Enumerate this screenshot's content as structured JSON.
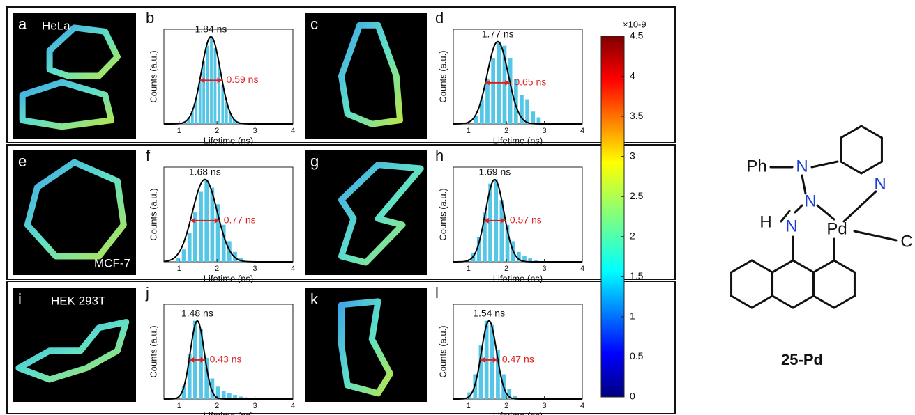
{
  "images": [
    {
      "panel": "a",
      "cell_line": "HeLa"
    },
    {
      "panel": "c"
    },
    {
      "panel": "e",
      "cell_line": "MCF-7"
    },
    {
      "panel": "g"
    },
    {
      "panel": "i",
      "cell_line": "HEK 293T"
    },
    {
      "panel": "k"
    }
  ],
  "chart_data": [
    {
      "type": "histogram",
      "panel": "b",
      "xlabel": "Lifetime (ns)",
      "ylabel": "Counts (a.u.)",
      "color": "#56c6e6",
      "bins": [
        1.1,
        1.2,
        1.3,
        1.4,
        1.5,
        1.6,
        1.7,
        1.8,
        1.9,
        2.0,
        2.1,
        2.2,
        2.3,
        2.4,
        2.5,
        2.6,
        2.7
      ],
      "counts": [
        0.03,
        0.07,
        0.16,
        0.31,
        0.52,
        0.76,
        0.95,
        1.06,
        0.92,
        0.71,
        0.47,
        0.27,
        0.13,
        0.06,
        0.03,
        0.01
      ],
      "xlim": [
        0.6,
        4
      ],
      "xticks": [
        1,
        2,
        3,
        4
      ],
      "ylim": [
        0,
        1.15
      ],
      "peak": {
        "value": 1.84,
        "label": "1.84 ns"
      },
      "fwhm": {
        "value": 0.59,
        "label": "0.59 ns"
      }
    },
    {
      "type": "histogram",
      "panel": "d",
      "xlabel": "Lifetime (ns)",
      "ylabel": "Counts (a.u.)",
      "color": "#56c6e6",
      "bins": [
        1.125,
        1.275,
        1.425,
        1.575,
        1.725,
        1.875,
        2.025,
        2.175,
        2.325,
        2.475,
        2.625,
        2.775,
        2.925
      ],
      "counts": [
        0.1,
        0.3,
        0.55,
        0.8,
        1.0,
        0.95,
        0.8,
        0.55,
        0.35,
        0.3,
        0.15,
        0.08
      ],
      "xlim": [
        0.6,
        4
      ],
      "xticks": [
        1,
        2,
        3,
        4
      ],
      "ylim": [
        0,
        1.15
      ],
      "peak": {
        "value": 1.77,
        "label": "1.77 ns"
      },
      "fwhm": {
        "value": 0.65,
        "label": "0.65 ns"
      }
    },
    {
      "type": "histogram",
      "panel": "f",
      "xlabel": "Lifetime (ns)",
      "ylabel": "Counts (a.u.)",
      "color": "#56c6e6",
      "bins": [
        0.9,
        1.05,
        1.2,
        1.35,
        1.5,
        1.65,
        1.8,
        1.95,
        2.1,
        2.25,
        2.4,
        2.55,
        2.7
      ],
      "counts": [
        0.05,
        0.15,
        0.35,
        0.6,
        0.85,
        1.0,
        0.9,
        0.7,
        0.45,
        0.25,
        0.12,
        0.05
      ],
      "xlim": [
        0.6,
        4
      ],
      "xticks": [
        1,
        2,
        3,
        4
      ],
      "ylim": [
        0,
        1.15
      ],
      "peak": {
        "value": 1.68,
        "label": "1.68 ns"
      },
      "fwhm": {
        "value": 0.77,
        "label": "0.77 ns"
      }
    },
    {
      "type": "histogram",
      "panel": "h",
      "xlabel": "Lifetime (ns)",
      "ylabel": "Counts (a.u.)",
      "color": "#56c6e6",
      "bins": [
        1.05,
        1.2,
        1.35,
        1.5,
        1.65,
        1.8,
        1.95,
        2.1,
        2.25,
        2.4,
        2.55,
        2.7,
        2.85
      ],
      "counts": [
        0.1,
        0.3,
        0.6,
        0.95,
        1.0,
        0.75,
        0.45,
        0.25,
        0.12,
        0.07,
        0.05,
        0.02
      ],
      "xlim": [
        0.6,
        4
      ],
      "xticks": [
        1,
        2,
        3,
        4
      ],
      "ylim": [
        0,
        1.15
      ],
      "peak": {
        "value": 1.69,
        "label": "1.69 ns"
      },
      "fwhm": {
        "value": 0.57,
        "label": "0.57 ns"
      }
    },
    {
      "type": "histogram",
      "panel": "j",
      "xlabel": "Lifetime (ns)",
      "ylabel": "Counts (a.u.)",
      "color": "#56c6e6",
      "bins": [
        1.05,
        1.2,
        1.35,
        1.5,
        1.65,
        1.8,
        1.95,
        2.1,
        2.25,
        2.4,
        2.55,
        2.7,
        2.85
      ],
      "counts": [
        0.15,
        0.55,
        0.95,
        0.85,
        0.5,
        0.25,
        0.15,
        0.1,
        0.07,
        0.05,
        0.03,
        0.02
      ],
      "xlim": [
        0.6,
        4
      ],
      "xticks": [
        1,
        2,
        3,
        4
      ],
      "ylim": [
        0,
        1.15
      ],
      "peak": {
        "value": 1.48,
        "label": "1.48 ns"
      },
      "fwhm": {
        "value": 0.43,
        "label": "0.43 ns"
      }
    },
    {
      "type": "histogram",
      "panel": "l",
      "xlabel": "Lifetime (ns)",
      "ylabel": "Counts (a.u.)",
      "color": "#56c6e6",
      "bins": [
        0.95,
        1.1,
        1.25,
        1.4,
        1.55,
        1.7,
        1.85,
        2.0,
        2.15,
        2.3
      ],
      "counts": [
        0.08,
        0.3,
        0.65,
        0.95,
        0.9,
        0.6,
        0.3,
        0.12,
        0.04
      ],
      "xlim": [
        0.6,
        4
      ],
      "xticks": [
        1,
        2,
        3,
        4
      ],
      "ylim": [
        0,
        1.15
      ],
      "peak": {
        "value": 1.54,
        "label": "1.54 ns"
      },
      "fwhm": {
        "value": 0.47,
        "label": "0.47 ns"
      }
    }
  ],
  "colorbar": {
    "scale_label": "×10-9",
    "lim": [
      0,
      4.5
    ],
    "ticks": [
      0,
      0.5,
      1,
      1.5,
      2,
      2.5,
      3,
      3.5,
      4,
      4.5
    ]
  },
  "structure": {
    "atoms": [
      "Ph",
      "N",
      "N",
      "N",
      "H",
      "N",
      "Pd",
      "C"
    ],
    "name": "25-Pd"
  }
}
